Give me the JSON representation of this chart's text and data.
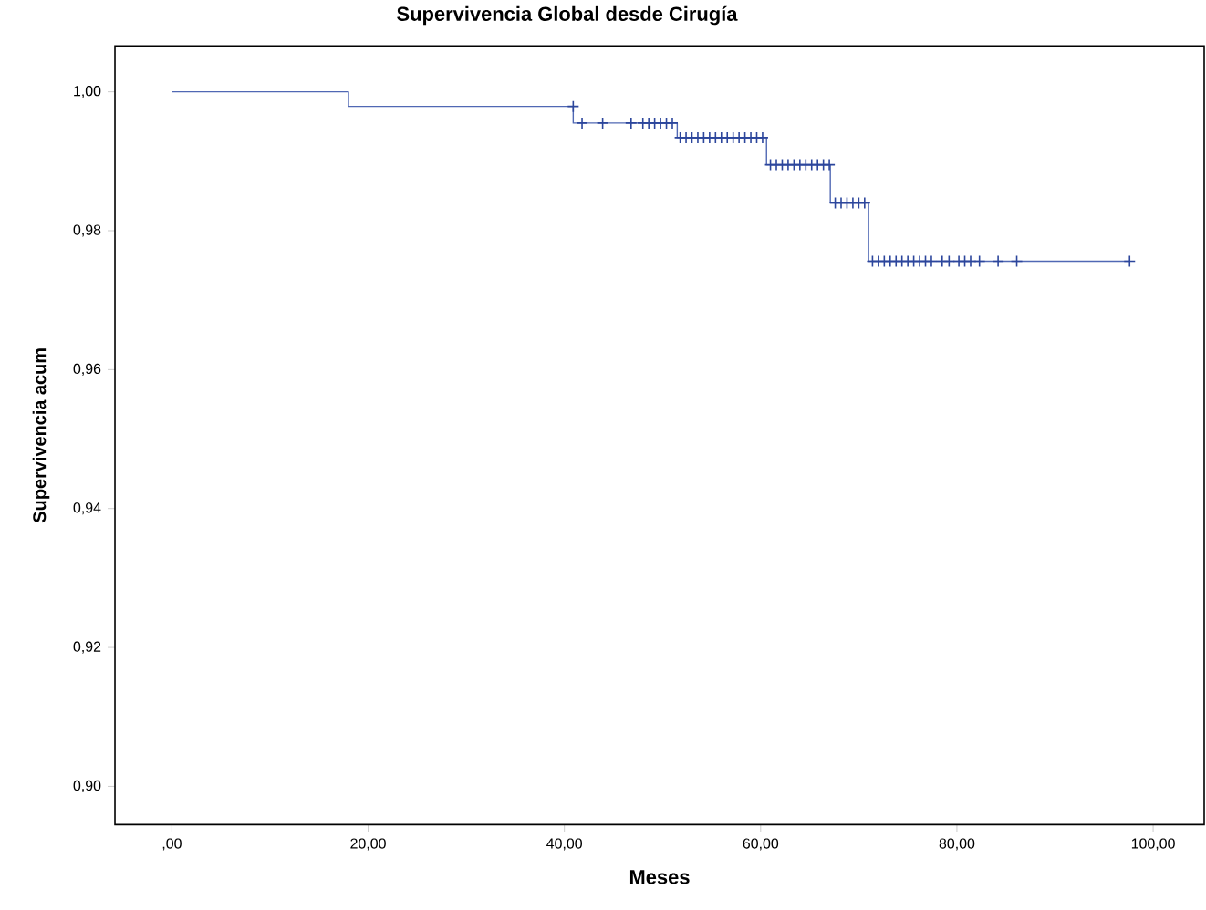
{
  "chart_data": {
    "type": "step",
    "title": "Supervivencia Global desde Cirugía",
    "xlabel": "Meses",
    "ylabel": "Supervivencia acum",
    "xlim": [
      -5.8,
      105.2
    ],
    "ylim": [
      0.8945,
      1.0066
    ],
    "xticks": [
      {
        "value": 0,
        "label": ",00"
      },
      {
        "value": 20,
        "label": "20,00"
      },
      {
        "value": 40,
        "label": "40,00"
      },
      {
        "value": 60,
        "label": "60,00"
      },
      {
        "value": 80,
        "label": "80,00"
      },
      {
        "value": 100,
        "label": "100,00"
      }
    ],
    "yticks": [
      {
        "value": 0.9,
        "label": "0,90"
      },
      {
        "value": 0.92,
        "label": "0,92"
      },
      {
        "value": 0.94,
        "label": "0,94"
      },
      {
        "value": 0.96,
        "label": "0,96"
      },
      {
        "value": 0.98,
        "label": "0,98"
      },
      {
        "value": 1.0,
        "label": "1,00"
      }
    ],
    "grid": false,
    "series": [
      {
        "type": "step",
        "color": "#5068b4",
        "marker": "none",
        "x": [
          0,
          18.0,
          40.9,
          51.5,
          60.6,
          67.1,
          71.0,
          97.6
        ],
        "values": [
          1.0,
          0.9979,
          0.9955,
          0.9934,
          0.9895,
          0.984,
          0.9756,
          0.9756
        ]
      },
      {
        "type": "scatter",
        "color": "#2c469c",
        "marker": "cross",
        "x": [
          40.9,
          41.8,
          43.9,
          46.8,
          48.0,
          48.6,
          49.2,
          49.8,
          50.4,
          51.0,
          51.8,
          52.4,
          53.0,
          53.6,
          54.2,
          54.8,
          55.4,
          56.0,
          56.6,
          57.2,
          57.8,
          58.4,
          59.0,
          59.6,
          60.2,
          61.0,
          61.6,
          62.2,
          62.8,
          63.4,
          64.0,
          64.6,
          65.2,
          65.8,
          66.4,
          67.0,
          67.6,
          68.2,
          68.8,
          69.4,
          70.0,
          70.6,
          71.4,
          72.0,
          72.6,
          73.2,
          73.8,
          74.4,
          75.0,
          75.6,
          76.2,
          76.8,
          77.4,
          78.5,
          79.2,
          80.2,
          80.8,
          81.4,
          82.3,
          84.2,
          86.1,
          97.6
        ],
        "values": [
          0.9979,
          0.9955,
          0.9955,
          0.9955,
          0.9955,
          0.9955,
          0.9955,
          0.9955,
          0.9955,
          0.9955,
          0.9934,
          0.9934,
          0.9934,
          0.9934,
          0.9934,
          0.9934,
          0.9934,
          0.9934,
          0.9934,
          0.9934,
          0.9934,
          0.9934,
          0.9934,
          0.9934,
          0.9934,
          0.9895,
          0.9895,
          0.9895,
          0.9895,
          0.9895,
          0.9895,
          0.9895,
          0.9895,
          0.9895,
          0.9895,
          0.9895,
          0.984,
          0.984,
          0.984,
          0.984,
          0.984,
          0.984,
          0.9756,
          0.9756,
          0.9756,
          0.9756,
          0.9756,
          0.9756,
          0.9756,
          0.9756,
          0.9756,
          0.9756,
          0.9756,
          0.9756,
          0.9756,
          0.9756,
          0.9756,
          0.9756,
          0.9756,
          0.9756,
          0.9756,
          0.9756
        ]
      }
    ]
  }
}
